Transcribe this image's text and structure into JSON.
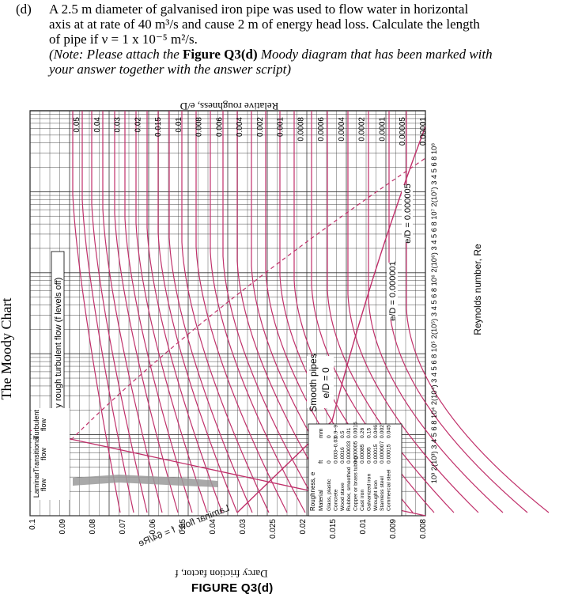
{
  "question": {
    "label": "(d)",
    "line1": "A 2.5 m diameter of galvanised iron pipe was used to flow water in horizontal",
    "line2": "axis at at rate of 40 m³/s and cause 2 m of energy head loss. Calculate the length",
    "line3": "of pipe if   ν = 1 x 10⁻⁵ m²/s.",
    "note1_a": "(Note: Please attach the ",
    "note1_b": "Figure Q3(d)",
    "note1_c": " Moody diagram that has been marked with",
    "note2": "your answer together with the answer script)"
  },
  "chart": {
    "side_title": "The Moody Chart",
    "top_label": "Relative roughness, e/D",
    "left_label": "Darcy friction factor, f",
    "bottom_label": "Reynolds number, Re",
    "laminar_label": "Laminar flow, f = 64/Re",
    "fully_rough_label": "Fully rough turbulent flow (f levels off)",
    "smooth_label1": "Smooth pipes",
    "smooth_label2": "e/D = 0",
    "ed_label1": "e/D = 0.000001",
    "ed_label2": "e/D = 0.000005",
    "regime_laminar1": "Laminar",
    "regime_laminar2": "flow",
    "regime_transitional1": "Transitional",
    "regime_transitional2": "flow",
    "regime_turbulent1": "Turbulent",
    "regime_turbulent2": "flow",
    "f_ticks": [
      "0.1",
      "0.09",
      "0.08",
      "0.07",
      "0.06",
      "0.05",
      "0.04",
      "0.03",
      "0.025",
      "0.02",
      "0.015",
      "0.01",
      "0.009",
      "0.008"
    ],
    "ed_ticks": [
      "0.05",
      "0.04",
      "0.03",
      "0.02",
      "0.015",
      "0.01",
      "0.008",
      "0.006",
      "0.004",
      "0.002",
      "0.001",
      "0.0008",
      "0.0006",
      "0.0004",
      "0.0002",
      "0.0001",
      "0.00005",
      "0.00001"
    ],
    "re_ticks": "10³  2(10³) 3  4 5 6  8 10⁴  2(10⁴) 3  4 5 6  8 10⁵  2(10⁵) 3  4 5 6  8 10⁶  2(10⁶) 3  4 5 6  8 10⁷  2(10⁷) 3  4 5 6  8 10⁸"
  },
  "table": {
    "title": "Roughness, e",
    "headers": [
      "Material",
      "ft",
      "mm"
    ],
    "rows": [
      [
        "Glass, plastic",
        "0",
        "0"
      ],
      [
        "Concrete",
        "0.003–0.03",
        "0.9–9"
      ],
      [
        "Wood stave",
        "0.0016",
        "0.5"
      ],
      [
        "Rubber, smoothed",
        "0.000033",
        "0.01"
      ],
      [
        "Copper or brass tubing",
        "0.000005",
        "0.0015"
      ],
      [
        "Cast iron",
        "0.00085",
        "0.26"
      ],
      [
        "Galvanized iron",
        "0.0005",
        "0.15"
      ],
      [
        "Wrought iron",
        "0.00015",
        "0.046"
      ],
      [
        "Stainless steel",
        "0.000007",
        "0.002"
      ],
      [
        "Commercial steel",
        "0.00015",
        "0.045"
      ]
    ]
  },
  "figure_caption": "FIGURE Q3(d)",
  "colors": {
    "curve": "#c0306a",
    "grid": "#222222"
  }
}
